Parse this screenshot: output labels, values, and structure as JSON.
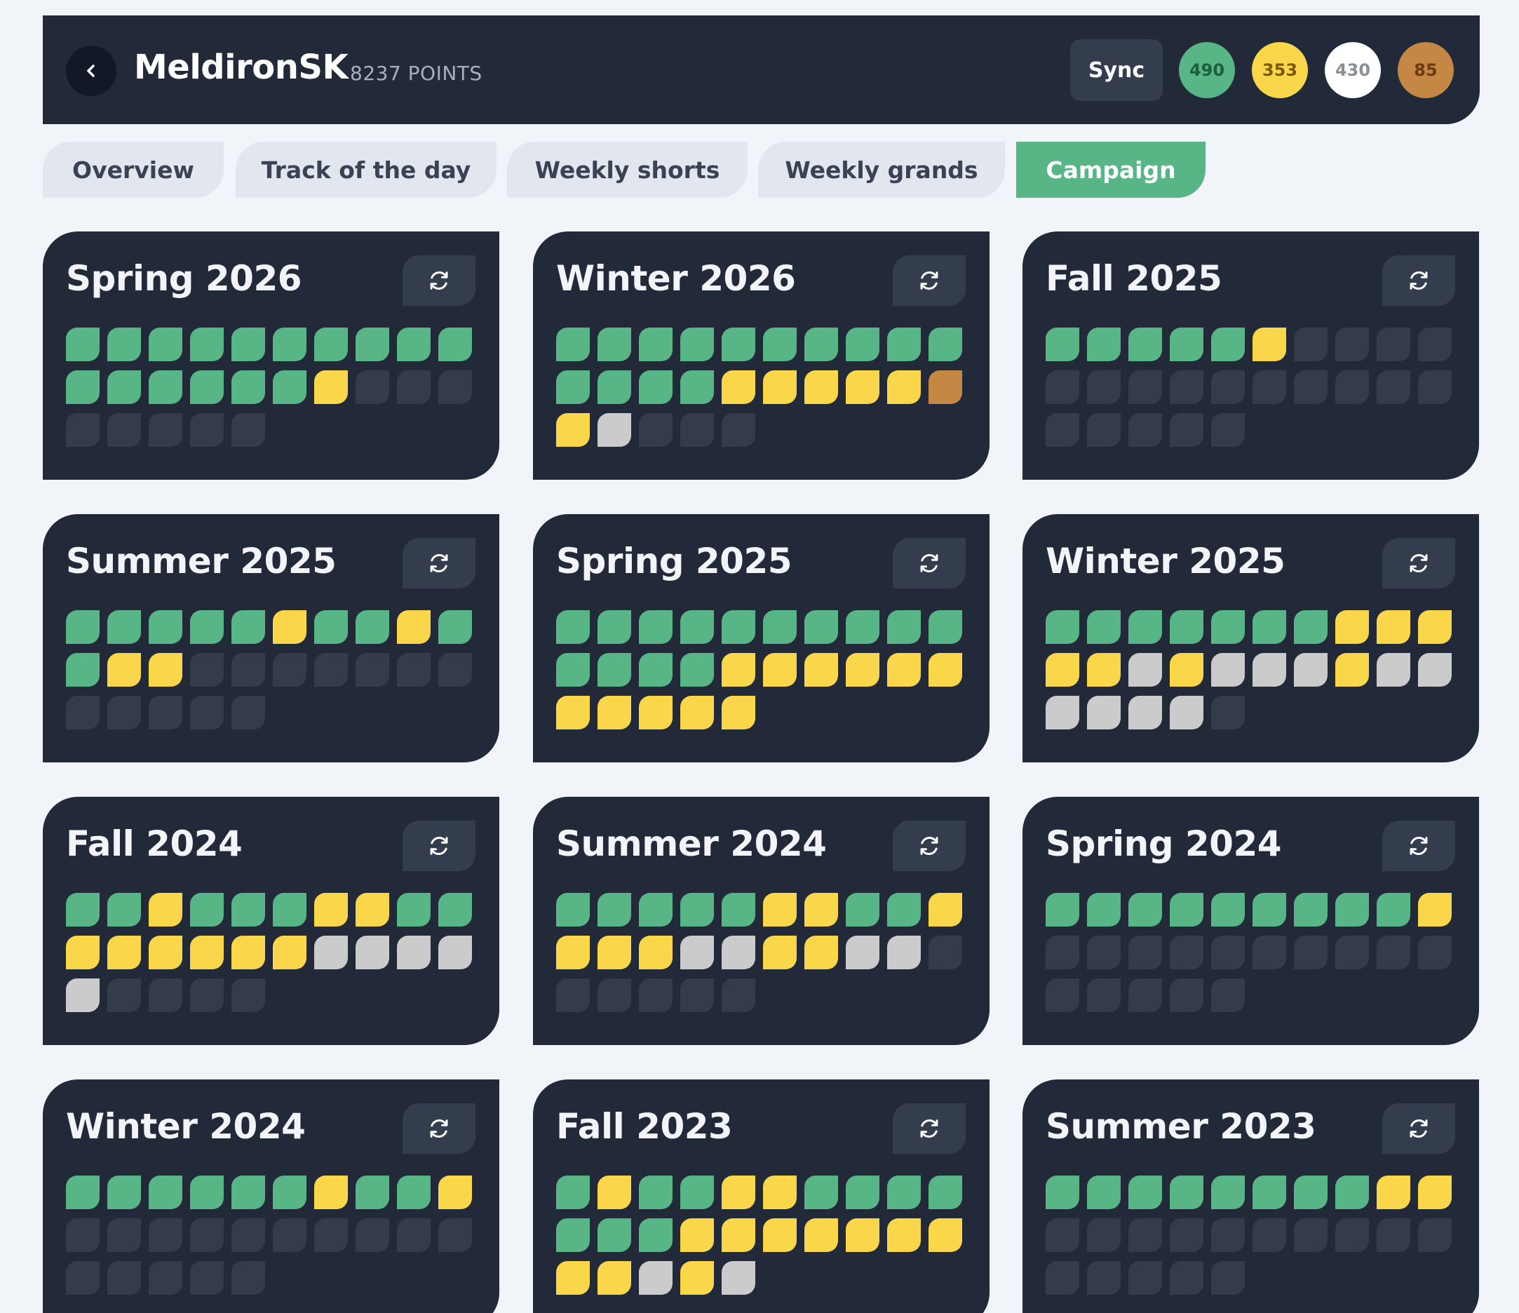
{
  "header": {
    "username": "MeldironSK",
    "points_text": "8237 POINTS",
    "sync_label": "Sync",
    "medals": [
      {
        "name": "green-medal",
        "count": "490",
        "bg": "#57b586",
        "fg": "#1c5f3e"
      },
      {
        "name": "gold-medal",
        "count": "353",
        "bg": "#fad64a",
        "fg": "#7a5a00"
      },
      {
        "name": "silver-medal",
        "count": "430",
        "bg": "#ffffff",
        "fg": "#8a8f98"
      },
      {
        "name": "bronze-medal",
        "count": "85",
        "bg": "#c48744",
        "fg": "#6b3c11"
      }
    ]
  },
  "tabs": [
    {
      "label": "Overview",
      "active": false
    },
    {
      "label": "Track of the day",
      "active": false
    },
    {
      "label": "Weekly shorts",
      "active": false
    },
    {
      "label": "Weekly grands",
      "active": false
    },
    {
      "label": "Campaign",
      "active": true
    }
  ],
  "medal_legend": {
    "g": "green",
    "y": "gold",
    "s": "silver",
    "b": "bronze",
    "e": "none"
  },
  "campaigns": [
    {
      "title": "Spring 2026",
      "tracks": "ggggggggggggggggyeeeeeeee"
    },
    {
      "title": "Winter 2026",
      "tracks": "ggggggggggggggyyyyybysee"
    },
    {
      "title": "Fall 2025",
      "tracks": "gggggyeeeeeeeeeeeeeeeeeee"
    },
    {
      "title": "Summer 2025",
      "tracks": "gggggyggyggyyeeeeeeeeeeee"
    },
    {
      "title": "Spring 2025",
      "tracks": "ggggggggggggggyyyyyyyyyyy"
    },
    {
      "title": "Winter 2025",
      "tracks": "gggggggyyyyysysssyssssss"
    },
    {
      "title": "Fall 2024",
      "tracks": "ggygggyyggyyyyyyssssseeeee"
    },
    {
      "title": "Summer 2024",
      "tracks": "gggggyyggyyyyssyysseeeeeee"
    },
    {
      "title": "Spring 2024",
      "tracks": "gggggggggyeeeeeeeeeeeeeee"
    },
    {
      "title": "Winter 2024",
      "tracks": "ggggggyggyeeeeeeeeeeeeeee"
    },
    {
      "title": "Fall 2023",
      "tracks": "gyggyygggggggyyyyyyyyysys"
    },
    {
      "title": "Summer 2023",
      "tracks": "ggggggggyyeeeeeeeeeeeeeee"
    }
  ]
}
